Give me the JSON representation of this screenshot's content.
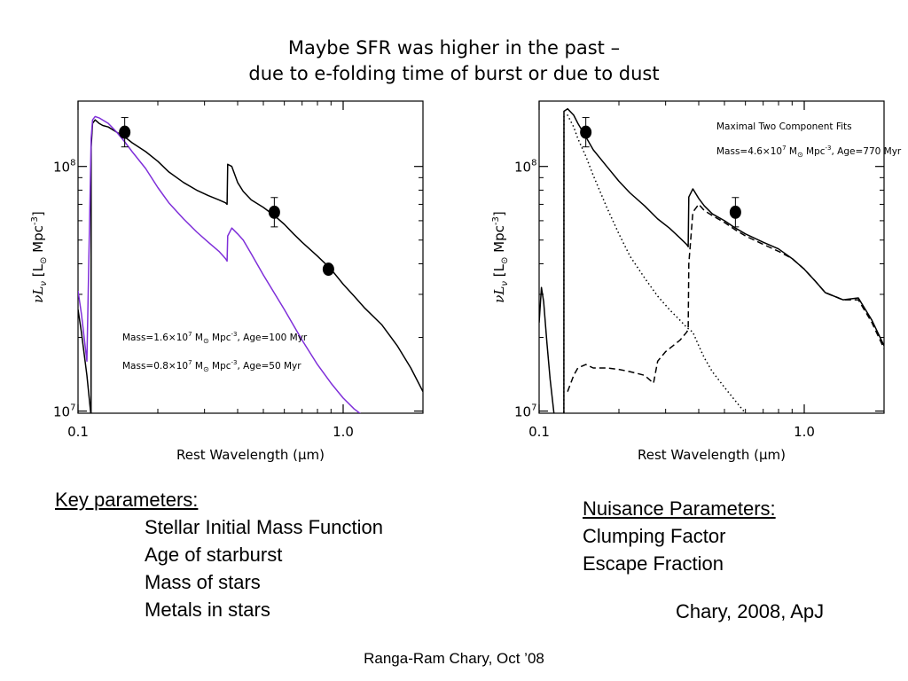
{
  "slide": {
    "title_line1": "Maybe SFR was higher in the past –",
    "title_line2": "due to e-folding time of burst or due to dust",
    "key_parameters": {
      "heading": "Key parameters:",
      "items": [
        "Stellar Initial Mass Function",
        "Age of starburst",
        "Mass of stars",
        "Metals in stars"
      ]
    },
    "nuisance_parameters": {
      "heading": "Nuisance Parameters:",
      "items": [
        "Clumping Factor",
        "Escape Fraction"
      ]
    },
    "citation": "Chary, 2008, ApJ",
    "footer": "Ranga-Ram Chary, Oct ’08"
  },
  "colors": {
    "black_series": "#000000",
    "purple_series": "#7f2fd9"
  },
  "chart_data": [
    {
      "type": "line",
      "x_scale": "log",
      "y_scale": "log",
      "xlim": [
        0.1,
        2.0
      ],
      "ylim": [
        9800000.0,
        185000000.0
      ],
      "xlabel_text": "Rest Wavelength (",
      "xlabel_unit": "μm",
      "xlabel_close": ")",
      "ylabel_text": "νL",
      "ylabel_sub": "ν",
      "ylabel_unit": "[L",
      "ylabel_unit_sub": "⊙",
      "ylabel_rest": " Mpc",
      "ylabel_exp": "-3",
      "ylabel_close": "]",
      "x_ticks": [
        {
          "value": 0.1,
          "label": "0.1"
        },
        {
          "value": 1.0,
          "label": "1.0"
        }
      ],
      "y_ticks": [
        {
          "value": 10000000.0,
          "label": "10",
          "exp": "7"
        },
        {
          "value": 100000000.0,
          "label": "10",
          "exp": "8"
        }
      ],
      "legend": [
        {
          "color": "#000000",
          "text": "Mass=1.6×10",
          "exp": "7",
          "mid": " M",
          "sub": "⊙",
          "mid2": " Mpc",
          "exp2": "-3",
          "tail": ", Age=100 Myr"
        },
        {
          "color": "#7f2fd9",
          "text": "Mass=0.8×10",
          "exp": "7",
          "mid": " M",
          "sub": "⊙",
          "mid2": " Mpc",
          "exp2": "-3",
          "tail": ", Age=50 Myr"
        }
      ],
      "series": [
        {
          "color": "#000000",
          "dash": "solid",
          "x": [
            0.1,
            0.103,
            0.108,
            0.112,
            0.1121,
            0.1135,
            0.116,
            0.12,
            0.124,
            0.13,
            0.14,
            0.15,
            0.16,
            0.18,
            0.2,
            0.22,
            0.25,
            0.28,
            0.31,
            0.34,
            0.36,
            0.365,
            0.367,
            0.38,
            0.4,
            0.42,
            0.45,
            0.5,
            0.55,
            0.6,
            0.65,
            0.7,
            0.8,
            0.9,
            1.0,
            1.1,
            1.2,
            1.4,
            1.6,
            1.8,
            2.0
          ],
          "y": [
            26000000.0,
            21000000.0,
            14000000.0,
            9500000.0,
            120000000.0,
            150000000.0,
            155000000.0,
            150000000.0,
            147000000.0,
            145000000.0,
            138000000.0,
            132000000.0,
            125000000.0,
            115000000.0,
            105000000.0,
            95000000.0,
            86000000.0,
            80000000.0,
            76000000.0,
            73000000.0,
            71000000.0,
            70000000.0,
            102000000.0,
            100000000.0,
            86000000.0,
            79000000.0,
            73000000.0,
            68000000.0,
            63000000.0,
            58000000.0,
            53000000.0,
            49000000.0,
            43000000.0,
            38000000.0,
            33000000.0,
            29500000.0,
            26500000.0,
            22500000.0,
            18500000.0,
            15000000.0,
            12000000.0
          ]
        },
        {
          "color": "#7f2fd9",
          "dash": "solid",
          "x": [
            0.1,
            0.103,
            0.108,
            0.1121,
            0.1135,
            0.116,
            0.12,
            0.13,
            0.14,
            0.15,
            0.16,
            0.18,
            0.2,
            0.22,
            0.25,
            0.28,
            0.31,
            0.34,
            0.36,
            0.365,
            0.367,
            0.38,
            0.4,
            0.42,
            0.45,
            0.5,
            0.6,
            0.7,
            0.8,
            0.9,
            1.0,
            1.1,
            1.2
          ],
          "y": [
            31000000.0,
            25000000.0,
            16000000.0,
            130000000.0,
            155000000.0,
            160000000.0,
            158000000.0,
            150000000.0,
            138000000.0,
            126000000.0,
            115000000.0,
            98000000.0,
            82000000.0,
            71000000.0,
            61000000.0,
            54000000.0,
            49000000.0,
            45000000.0,
            42000000.0,
            41000000.0,
            52000000.0,
            56000000.0,
            53000000.0,
            50000000.0,
            44000000.0,
            36000000.0,
            26000000.0,
            19500000.0,
            15500000.0,
            13000000.0,
            11300000.0,
            10200000.0,
            9500000.0
          ]
        }
      ],
      "points": [
        {
          "x": 0.15,
          "y": 138000000.0,
          "err": 0.06
        },
        {
          "x": 0.55,
          "y": 65000000.0,
          "err": 0.06
        },
        {
          "x": 0.88,
          "y": 38000000.0,
          "err": 0.0
        }
      ]
    },
    {
      "type": "line",
      "x_scale": "log",
      "y_scale": "log",
      "xlim": [
        0.1,
        2.0
      ],
      "ylim": [
        9800000.0,
        185000000.0
      ],
      "xlabel_text": "Rest Wavelength (",
      "xlabel_unit": "μm",
      "xlabel_close": ")",
      "ylabel_text": "νL",
      "ylabel_sub": "ν",
      "ylabel_unit": "[L",
      "ylabel_unit_sub": "⊙",
      "ylabel_rest": " Mpc",
      "ylabel_exp": "-3",
      "ylabel_close": "]",
      "x_ticks": [
        {
          "value": 0.1,
          "label": "0.1"
        },
        {
          "value": 1.0,
          "label": "1.0"
        }
      ],
      "y_ticks": [
        {
          "value": 10000000.0,
          "label": "10",
          "exp": "7"
        },
        {
          "value": 100000000.0,
          "label": "10",
          "exp": "8"
        }
      ],
      "annotations": [
        {
          "text": "Maximal Two Component Fits"
        },
        {
          "text": "Mass=4.6×10",
          "exp": "7",
          "mid": " M",
          "sub": "⊙",
          "mid2": " Mpc",
          "exp2": "-3",
          "tail": ", Age=770 Myr"
        }
      ],
      "series": [
        {
          "color": "#000000",
          "dash": "solid",
          "x": [
            0.1,
            0.102,
            0.104,
            0.107,
            0.11,
            0.114,
            0.118,
            0.12,
            0.124,
            0.1241,
            0.128,
            0.135,
            0.14,
            0.15,
            0.16,
            0.18,
            0.2,
            0.22,
            0.25,
            0.28,
            0.31,
            0.34,
            0.36,
            0.365,
            0.367,
            0.38,
            0.4,
            0.42,
            0.45,
            0.5,
            0.55,
            0.6,
            0.7,
            0.8,
            0.9,
            1.0,
            1.1,
            1.2,
            1.4,
            1.6,
            1.8,
            2.0
          ],
          "y": [
            23000000.0,
            32000000.0,
            28000000.0,
            19000000.0,
            13500000.0,
            9600000.0,
            9300000.0,
            9300000.0,
            9500000.0,
            168000000.0,
            172000000.0,
            162000000.0,
            150000000.0,
            132000000.0,
            117000000.0,
            100000000.0,
            87000000.0,
            78000000.0,
            69000000.0,
            61000000.0,
            56000000.0,
            51000000.0,
            48000000.0,
            47000000.0,
            75000000.0,
            81000000.0,
            74000000.0,
            69000000.0,
            64000000.0,
            60000000.0,
            56000000.0,
            53000000.0,
            49000000.0,
            46000000.0,
            42000000.0,
            38000000.0,
            34000000.0,
            30500000.0,
            28500000.0,
            29000000.0,
            23500000.0,
            18500000.0
          ]
        },
        {
          "color": "#000000",
          "dash": "dot",
          "x": [
            0.124,
            0.1241,
            0.128,
            0.135,
            0.14,
            0.15,
            0.16,
            0.18,
            0.2,
            0.22,
            0.25,
            0.28,
            0.31,
            0.34,
            0.36,
            0.38,
            0.4,
            0.42,
            0.45,
            0.5,
            0.55,
            0.6
          ],
          "y": [
            9500000.0,
            160000000.0,
            162000000.0,
            145000000.0,
            130000000.0,
            110000000.0,
            92000000.0,
            68000000.0,
            53000000.0,
            43000000.0,
            35000000.0,
            29500000.0,
            26000000.0,
            23500000.0,
            22000000.0,
            21000000.0,
            18500000.0,
            16500000.0,
            14500000.0,
            12500000.0,
            11000000.0,
            9800000.0
          ]
        },
        {
          "color": "#000000",
          "dash": "dash",
          "x": [
            0.128,
            0.135,
            0.14,
            0.15,
            0.16,
            0.18,
            0.2,
            0.22,
            0.25,
            0.27,
            0.28,
            0.3,
            0.32,
            0.34,
            0.36,
            0.365,
            0.367,
            0.38,
            0.4,
            0.42,
            0.45,
            0.5,
            0.55,
            0.6,
            0.7,
            0.8,
            0.9,
            1.0,
            1.1,
            1.2,
            1.4,
            1.6,
            1.8,
            2.0
          ],
          "y": [
            12000000.0,
            14000000.0,
            15000000.0,
            15500000.0,
            15000000.0,
            15000000.0,
            14800000.0,
            14500000.0,
            14000000.0,
            13000000.0,
            16000000.0,
            17500000.0,
            18500000.0,
            19500000.0,
            21000000.0,
            21500000.0,
            40000000.0,
            65000000.0,
            70000000.0,
            66000000.0,
            63000000.0,
            59000000.0,
            55000000.0,
            52000000.0,
            48000000.0,
            45000000.0,
            42000000.0,
            38000000.0,
            34000000.0,
            30500000.0,
            28500000.0,
            28500000.0,
            23000000.0,
            18000000.0
          ]
        }
      ],
      "points": [
        {
          "x": 0.15,
          "y": 138000000.0,
          "err": 0.06
        },
        {
          "x": 0.55,
          "y": 65000000.0,
          "err": 0.06
        }
      ]
    }
  ]
}
